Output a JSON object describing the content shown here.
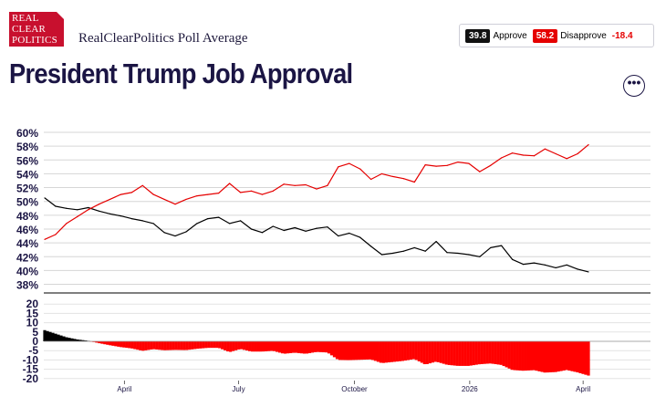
{
  "header": {
    "logo_lines": [
      "REAL",
      "CLEAR",
      "POLITICS"
    ],
    "source": "RealClearPolitics Poll Average",
    "title": "President Trump Job Approval",
    "more_icon": "ellipsis-icon"
  },
  "legend": {
    "approve_value": "39.8",
    "approve_label": "Approve",
    "disapprove_value": "58.2",
    "disapprove_label": "Disapprove",
    "spread": "-18.4"
  },
  "colors": {
    "approve": "#000000",
    "disapprove": "#e50000",
    "title": "#1b1544",
    "accent": "#c8102e"
  },
  "chart_data": [
    {
      "type": "line",
      "title": "",
      "ylim": [
        37,
        60
      ],
      "y_ticks": [
        "60%",
        "58%",
        "56%",
        "54%",
        "52%",
        "50%",
        "48%",
        "46%",
        "44%",
        "42%",
        "40%",
        "38%"
      ],
      "y_tick_values": [
        60,
        58,
        56,
        54,
        52,
        50,
        48,
        46,
        44,
        42,
        40,
        38
      ],
      "x_ticks": [
        "April",
        "July",
        "October",
        "2026",
        "April"
      ],
      "x_tick_positions": [
        0.133,
        0.321,
        0.512,
        0.702,
        0.889
      ],
      "grid": true,
      "series": [
        {
          "name": "Approve",
          "color": "#000000",
          "x": [
            0,
            0.02,
            0.04,
            0.06,
            0.08,
            0.1,
            0.12,
            0.14,
            0.16,
            0.18,
            0.2,
            0.22,
            0.24,
            0.26,
            0.28,
            0.3,
            0.32,
            0.34,
            0.36,
            0.38,
            0.4,
            0.42,
            0.44,
            0.46,
            0.48,
            0.5,
            0.52,
            0.54,
            0.56,
            0.58,
            0.6,
            0.62,
            0.64,
            0.66,
            0.68,
            0.7,
            0.72,
            0.74,
            0.76,
            0.78,
            0.8,
            0.82,
            0.84,
            0.86,
            0.88,
            0.9,
            0.92,
            0.94,
            0.96,
            0.98,
            1.0
          ],
          "y": [
            50.5,
            49.3,
            49.0,
            48.8,
            49.1,
            48.6,
            48.2,
            47.9,
            47.5,
            47.2,
            46.8,
            45.5,
            45.0,
            45.6,
            46.8,
            47.5,
            47.7,
            46.8,
            47.2,
            46.0,
            45.5,
            46.4,
            45.8,
            46.2,
            45.7,
            46.1,
            46.3,
            45.0,
            45.4,
            44.8,
            43.5,
            42.3,
            42.5,
            42.8,
            43.3,
            42.8,
            44.2,
            42.6,
            42.5,
            42.3,
            42.0,
            43.3,
            43.6,
            41.6,
            40.9,
            41.1,
            40.8,
            40.4,
            40.8,
            40.2,
            39.8
          ]
        },
        {
          "name": "Disapprove",
          "color": "#e50000",
          "x": [
            0,
            0.02,
            0.04,
            0.06,
            0.08,
            0.1,
            0.12,
            0.14,
            0.16,
            0.18,
            0.2,
            0.22,
            0.24,
            0.26,
            0.28,
            0.3,
            0.32,
            0.34,
            0.36,
            0.38,
            0.4,
            0.42,
            0.44,
            0.46,
            0.48,
            0.5,
            0.52,
            0.54,
            0.56,
            0.58,
            0.6,
            0.62,
            0.64,
            0.66,
            0.68,
            0.7,
            0.72,
            0.74,
            0.76,
            0.78,
            0.8,
            0.82,
            0.84,
            0.86,
            0.88,
            0.9,
            0.92,
            0.94,
            0.96,
            0.98,
            1.0
          ],
          "y": [
            44.5,
            45.2,
            46.8,
            47.8,
            48.8,
            49.6,
            50.3,
            51.0,
            51.3,
            52.3,
            51.0,
            50.3,
            49.6,
            50.3,
            50.8,
            51.0,
            51.2,
            52.6,
            51.3,
            51.5,
            51.0,
            51.5,
            52.5,
            52.3,
            52.4,
            51.8,
            52.3,
            55.0,
            55.5,
            54.7,
            53.2,
            54.0,
            53.6,
            53.3,
            52.8,
            55.3,
            55.1,
            55.2,
            55.7,
            55.5,
            54.3,
            55.2,
            56.3,
            57.0,
            56.7,
            56.6,
            57.6,
            56.9,
            56.2,
            56.9,
            58.2
          ]
        }
      ]
    },
    {
      "type": "area",
      "title": "",
      "series_name": "Spread",
      "ylim": [
        -20,
        20
      ],
      "y_ticks": [
        "20",
        "15",
        "10",
        "5",
        "0",
        "-5",
        "-10",
        "-15",
        "-20"
      ],
      "y_tick_values": [
        20,
        15,
        10,
        5,
        0,
        -5,
        -10,
        -15,
        -20
      ],
      "x_ticks": [
        "April",
        "July",
        "October",
        "2026",
        "April"
      ],
      "positive_color": "#000000",
      "negative_color": "#ff0000"
    }
  ]
}
